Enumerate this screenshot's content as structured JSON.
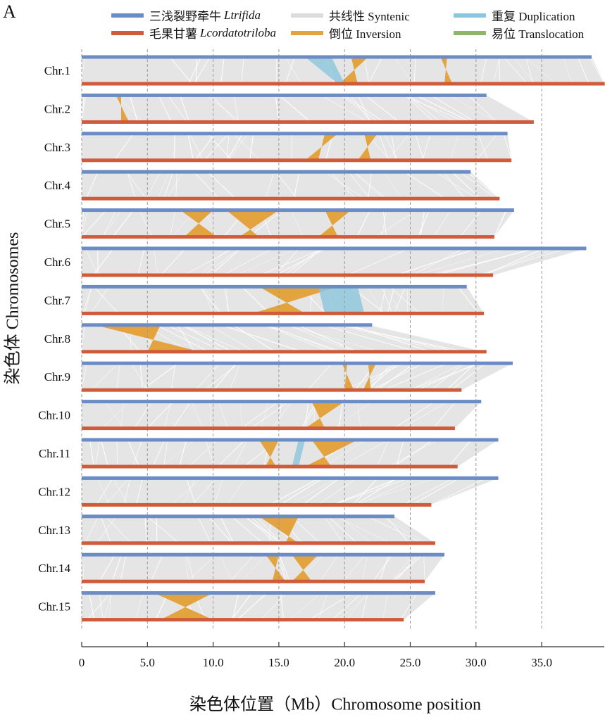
{
  "panel_label": "A",
  "legend": {
    "species1": {
      "label_cn": "三浅裂野牵牛",
      "label_latin": "Ltrifida",
      "color": "#6b8cc4"
    },
    "species2": {
      "label_cn": "毛果甘薯",
      "label_latin": "Lcordatotriloba",
      "color": "#cf5b3a"
    },
    "syntenic": {
      "label": "共线性 Syntenic",
      "color": "#dcdcdc"
    },
    "inversion": {
      "label": "倒位 Inversion",
      "color": "#e3a33e"
    },
    "duplication": {
      "label": "重复 Duplication",
      "color": "#8ac6dc"
    },
    "translocation": {
      "label": "易位 Translocation",
      "color": "#8fb56a"
    }
  },
  "axis": {
    "ylabel": "染色体 Chromosomes",
    "xlabel": "染色体位置（Mb）Chromosome position",
    "ticks": [
      "0",
      "5.0",
      "10.0",
      "15.0",
      "20.0",
      "25.0",
      "30.0",
      "35.0"
    ]
  },
  "chart_data": {
    "type": "synteny",
    "x_unit": "Mb",
    "xlim": [
      0,
      40
    ],
    "x_ticks": [
      0,
      5,
      10,
      15,
      20,
      25,
      30,
      35
    ],
    "grid_vertical": true,
    "chromosomes": [
      {
        "name": "Chr.1",
        "trifida_length": 38.8,
        "cordatotriloba_length": 39.8,
        "inversions": [
          [
            20.5,
            21.8,
            19.6,
            21.0
          ],
          [
            27.3,
            27.8,
            27.6,
            28.2
          ]
        ],
        "duplications": [
          [
            17.0,
            19.0,
            19.5,
            20.0
          ]
        ]
      },
      {
        "name": "Chr.2",
        "trifida_length": 30.8,
        "cordatotriloba_length": 34.4,
        "inversions": [
          [
            2.6,
            3.0,
            3.0,
            3.6
          ]
        ]
      },
      {
        "name": "Chr.3",
        "trifida_length": 32.4,
        "cordatotriloba_length": 32.7,
        "inversions": [
          [
            18.5,
            19.5,
            17.0,
            18.0
          ],
          [
            21.5,
            22.5,
            21.0,
            22.0
          ]
        ]
      },
      {
        "name": "Chr.4",
        "trifida_length": 29.6,
        "cordatotriloba_length": 31.8,
        "inversions": []
      },
      {
        "name": "Chr.5",
        "trifida_length": 32.9,
        "cordatotriloba_length": 31.4,
        "inversions": [
          [
            7.5,
            10.0,
            7.8,
            10.3
          ],
          [
            11.0,
            15.0,
            12.0,
            13.5
          ],
          [
            18.5,
            20.5,
            18.0,
            19.5
          ]
        ]
      },
      {
        "name": "Chr.6",
        "trifida_length": 38.4,
        "cordatotriloba_length": 31.3,
        "inversions": []
      },
      {
        "name": "Chr.7",
        "trifida_length": 29.3,
        "cordatotriloba_length": 30.6,
        "inversions": [
          [
            13.5,
            19.5,
            13.0,
            17.0
          ]
        ],
        "duplications": [
          [
            18.0,
            21.0,
            18.5,
            21.5
          ]
        ]
      },
      {
        "name": "Chr.8",
        "trifida_length": 22.1,
        "cordatotriloba_length": 30.8,
        "inversions": [
          [
            1.0,
            6.0,
            5.0,
            9.0
          ]
        ]
      },
      {
        "name": "Chr.9",
        "trifida_length": 32.8,
        "cordatotriloba_length": 28.9,
        "inversions": [
          [
            19.8,
            20.2,
            20.0,
            20.7
          ],
          [
            21.8,
            22.4,
            21.4,
            22.0
          ]
        ]
      },
      {
        "name": "Chr.10",
        "trifida_length": 30.4,
        "cordatotriloba_length": 28.4,
        "inversions": [
          [
            17.5,
            20.0,
            17.0,
            18.5
          ]
        ]
      },
      {
        "name": "Chr.11",
        "trifida_length": 31.7,
        "cordatotriloba_length": 28.6,
        "inversions": [
          [
            13.5,
            15.0,
            14.0,
            14.8
          ],
          [
            17.5,
            21.0,
            17.0,
            19.0
          ]
        ],
        "duplications": [
          [
            16.5,
            17.0,
            16.0,
            16.5
          ]
        ]
      },
      {
        "name": "Chr.12",
        "trifida_length": 31.7,
        "cordatotriloba_length": 26.6,
        "inversions": []
      },
      {
        "name": "Chr.13",
        "trifida_length": 23.8,
        "cordatotriloba_length": 26.9,
        "inversions": [
          [
            13.5,
            16.5,
            15.5,
            16.5
          ]
        ]
      },
      {
        "name": "Chr.14",
        "trifida_length": 27.6,
        "cordatotriloba_length": 26.1,
        "inversions": [
          [
            14.0,
            15.0,
            14.5,
            15.5
          ],
          [
            16.0,
            18.0,
            16.0,
            17.5
          ]
        ]
      },
      {
        "name": "Chr.15",
        "trifida_length": 26.9,
        "cordatotriloba_length": 24.5,
        "inversions": [
          [
            5.5,
            10.0,
            6.0,
            10.0
          ]
        ]
      }
    ]
  }
}
